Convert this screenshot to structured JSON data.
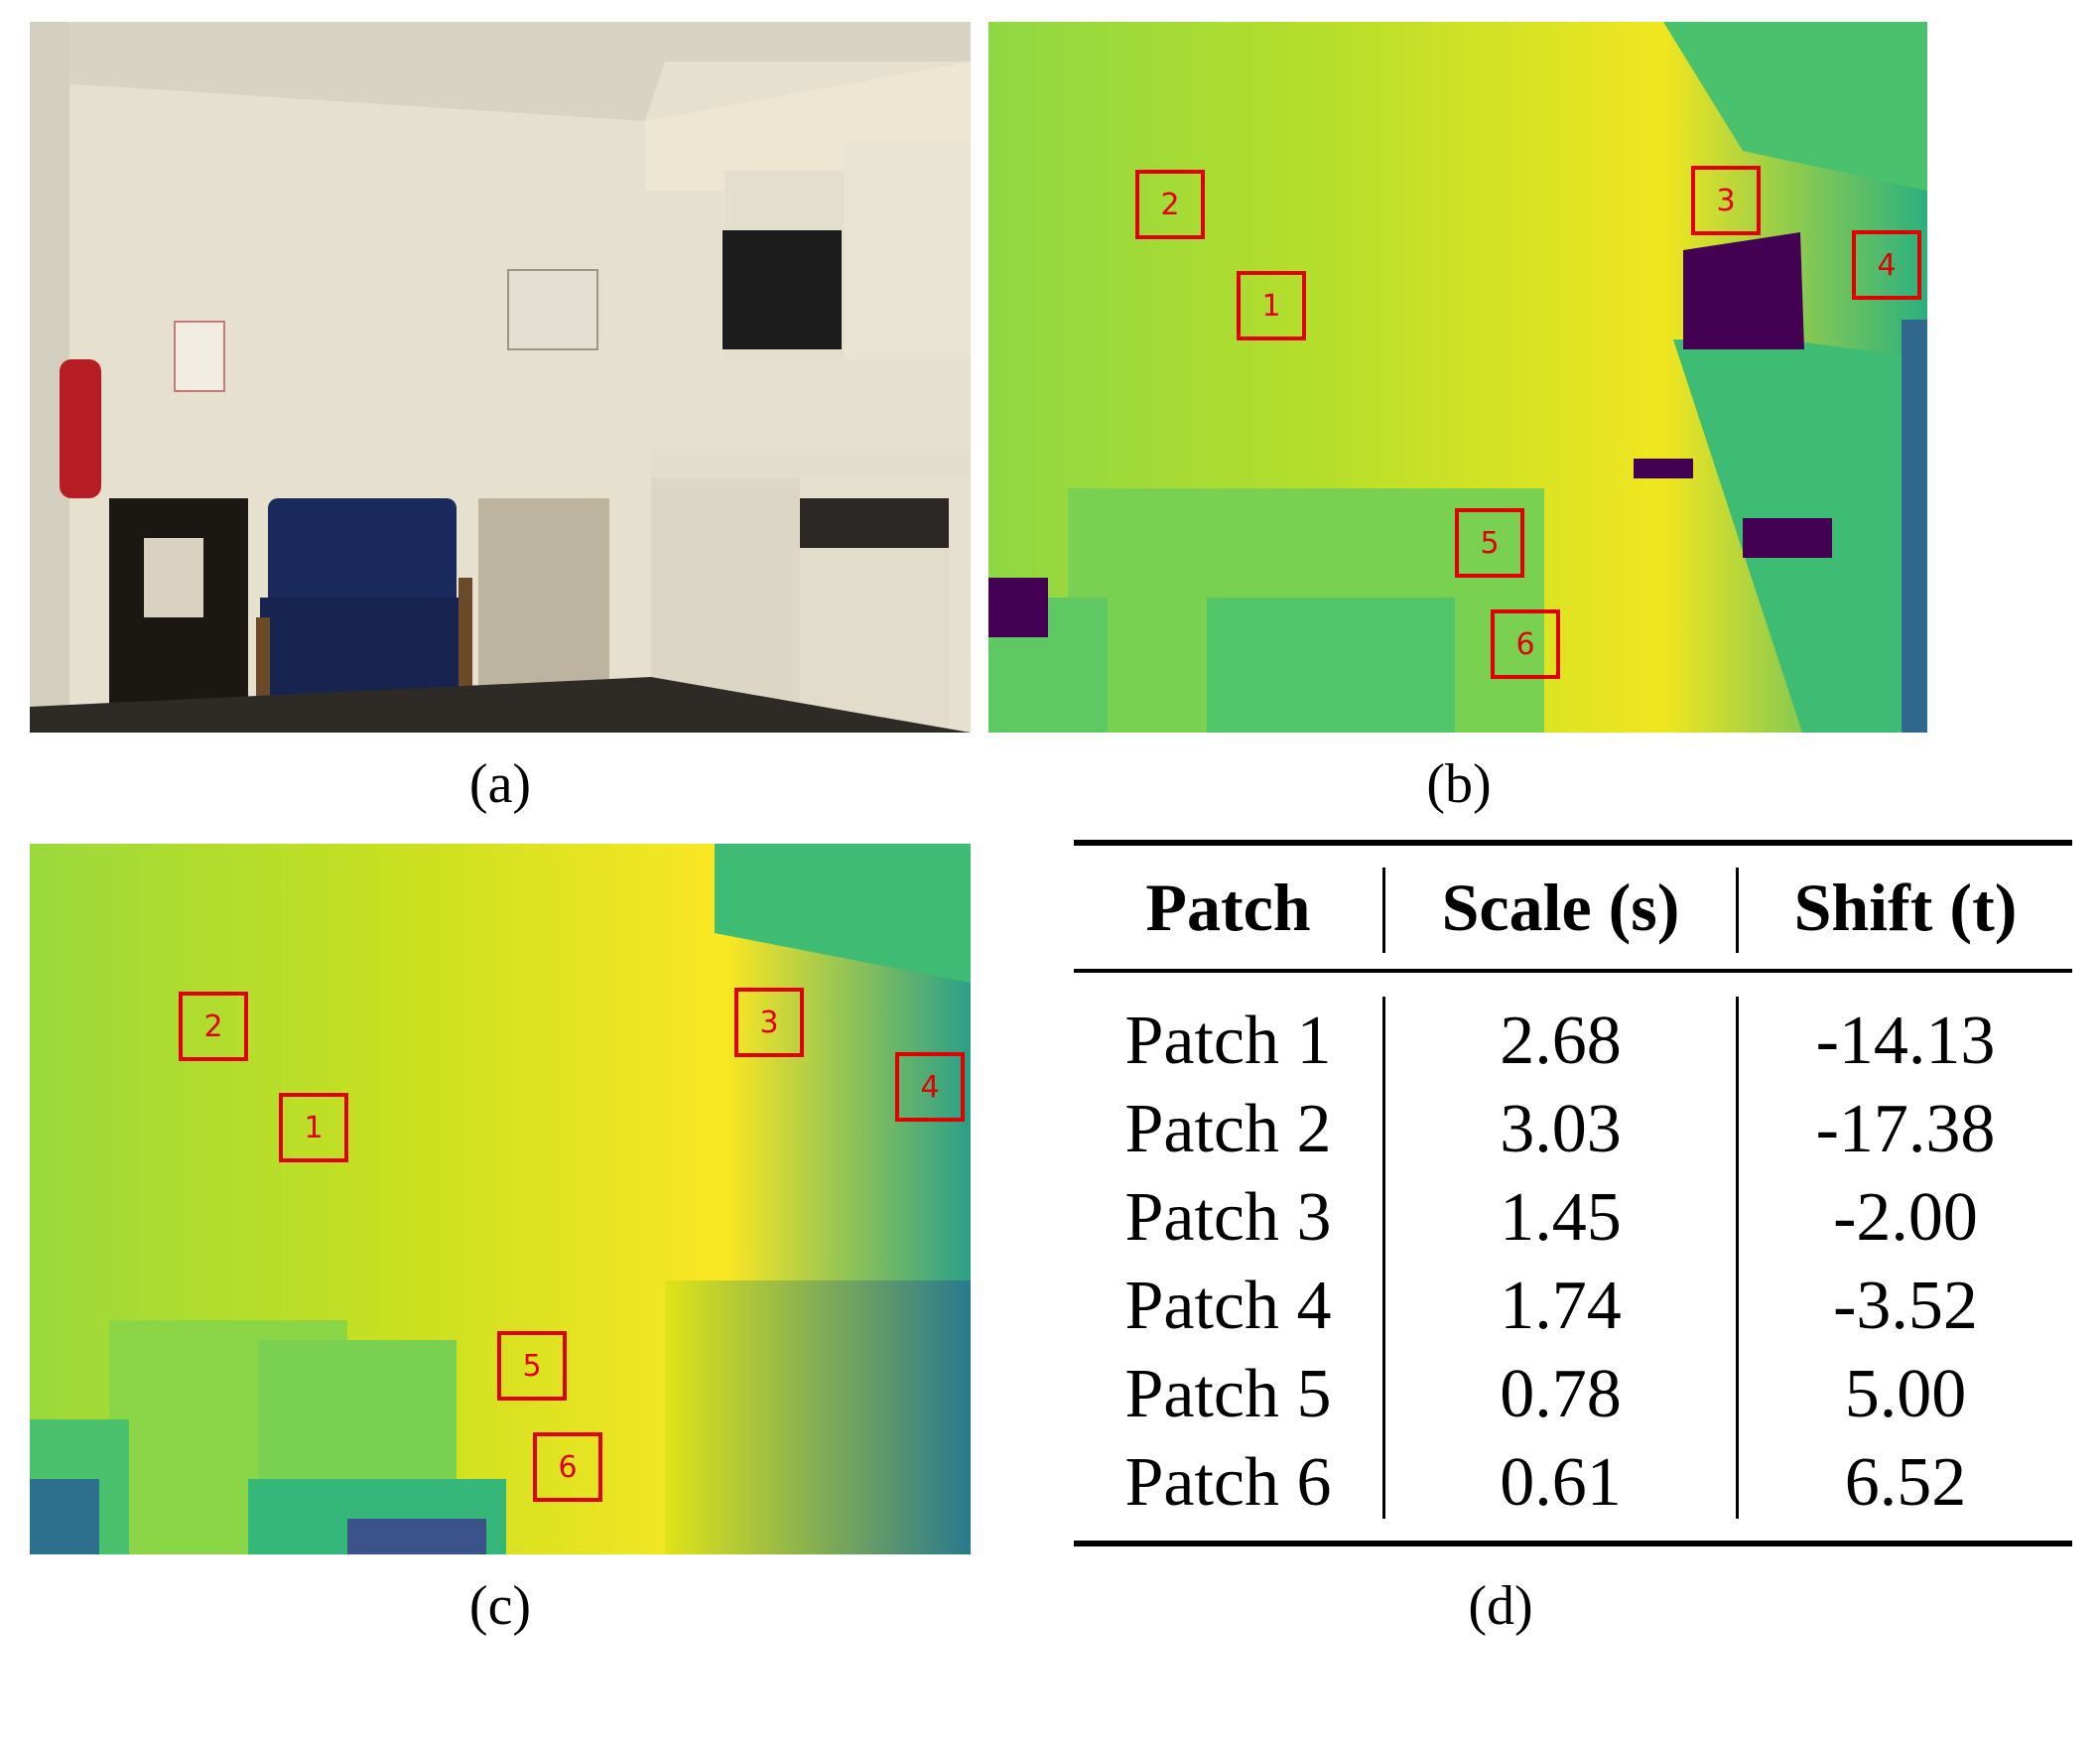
{
  "panels": {
    "a": {
      "caption": "(a)"
    },
    "b": {
      "caption": "(b)"
    },
    "c": {
      "caption": "(c)"
    },
    "d": {
      "caption": "(d)"
    }
  },
  "patch_labels": [
    "1",
    "2",
    "3",
    "4",
    "5",
    "6"
  ],
  "table": {
    "headers": [
      "Patch",
      "Scale (s)",
      "Shift (t)"
    ],
    "rows": [
      [
        "Patch 1",
        "2.68",
        "-14.13"
      ],
      [
        "Patch 2",
        "3.03",
        "-17.38"
      ],
      [
        "Patch 3",
        "1.45",
        "-2.00"
      ],
      [
        "Patch 4",
        "1.74",
        "-3.52"
      ],
      [
        "Patch 5",
        "0.78",
        "5.00"
      ],
      [
        "Patch 6",
        "0.61",
        "6.52"
      ]
    ]
  },
  "colors": {
    "box": "#e00000",
    "viridis_yellow": "#fde725",
    "viridis_green": "#7ad151",
    "viridis_teal": "#22a884",
    "viridis_purple": "#440154"
  }
}
